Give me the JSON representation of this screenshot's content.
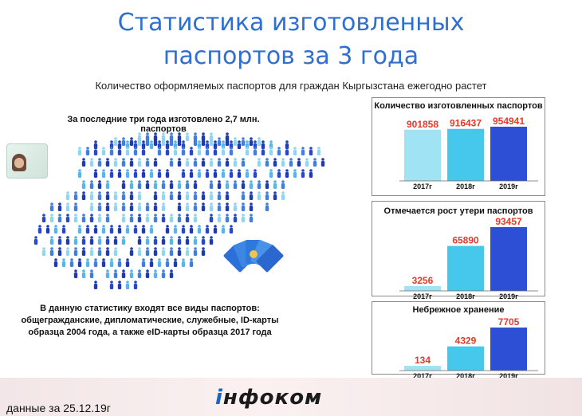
{
  "header": {
    "title_line1": "Статистика изготовленных",
    "title_line2": "паспортов за 3 года",
    "subtitle": "Количество оформляемых паспортов для граждан Кыргызстана ежегодно растет"
  },
  "left": {
    "caption": "За последние три года изготовлено 2,7 млн. паспортов",
    "note_line1": "В данную статистику входят все виды паспортов:",
    "note_line2": "общегражданские, дипломатические, служебные, ID-карты",
    "note_line3": "образца 2004 года, а также eID-карты образца 2017 года"
  },
  "footer": {
    "date": "данные за 25.12.19г",
    "logo_prefix": "i",
    "logo_rest": "нфоком"
  },
  "colors": {
    "title": "#2e6fd1",
    "value_label": "#e53a2a",
    "bar_2017": "#9fe3f4",
    "bar_2018": "#46c7ec",
    "bar_2019": "#2c4fd6"
  },
  "chart_data": [
    {
      "type": "bar",
      "title": "Количество изготовленных паспортов",
      "categories": [
        "2017г",
        "2018г",
        "2019г"
      ],
      "values": [
        901858,
        916437,
        954941
      ],
      "value_labels": [
        "901858",
        "916437",
        "954941"
      ]
    },
    {
      "type": "bar",
      "title": "Отмечается рост утери паспортов",
      "categories": [
        "2017г",
        "2018г",
        "2019г"
      ],
      "values": [
        3256,
        65890,
        93457
      ],
      "value_labels": [
        "3256",
        "65890",
        "93457"
      ]
    },
    {
      "type": "bar",
      "title": "Небрежное хранение",
      "categories": [
        "2017г",
        "2018г",
        "2019г"
      ],
      "values": [
        134,
        4329,
        7705
      ],
      "value_labels": [
        "134",
        "4329",
        "7705"
      ]
    }
  ]
}
